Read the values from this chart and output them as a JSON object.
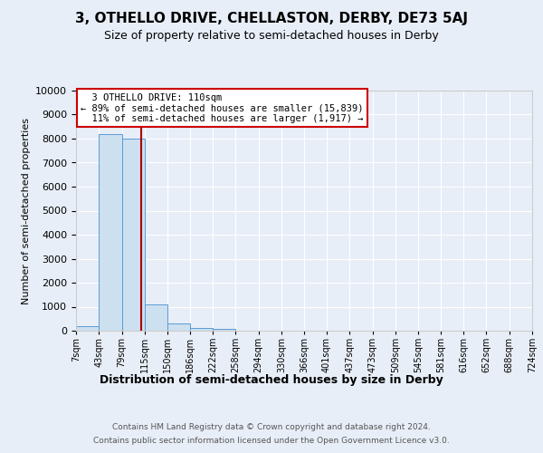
{
  "title": "3, OTHELLO DRIVE, CHELLASTON, DERBY, DE73 5AJ",
  "subtitle": "Size of property relative to semi-detached houses in Derby",
  "xlabel": "Distribution of semi-detached houses by size in Derby",
  "ylabel": "Number of semi-detached properties",
  "property_label": "3 OTHELLO DRIVE: 110sqm",
  "smaller_pct": 89,
  "smaller_count": "15,839",
  "larger_pct": 11,
  "larger_count": "1,917",
  "bin_edges": [
    7,
    43,
    79,
    115,
    150,
    186,
    222,
    258,
    294,
    330,
    366,
    401,
    437,
    473,
    509,
    545,
    581,
    616,
    652,
    688,
    724
  ],
  "bin_counts": [
    170,
    8200,
    8000,
    1100,
    300,
    110,
    70,
    0,
    0,
    0,
    0,
    0,
    0,
    0,
    0,
    0,
    0,
    0,
    0,
    0
  ],
  "bar_color": "#cce0f0",
  "bar_edge_color": "#5b9bd5",
  "vline_color": "#aa0000",
  "vline_x": 110,
  "legend_edge_color": "#cc0000",
  "footer_line1": "Contains HM Land Registry data © Crown copyright and database right 2024.",
  "footer_line2": "Contains public sector information licensed under the Open Government Licence v3.0.",
  "ylim": [
    0,
    10000
  ],
  "yticks": [
    0,
    1000,
    2000,
    3000,
    4000,
    5000,
    6000,
    7000,
    8000,
    9000,
    10000
  ],
  "background_color": "#e8eef8",
  "grid_color": "#ffffff",
  "tick_labels": [
    "7sqm",
    "43sqm",
    "79sqm",
    "115sqm",
    "150sqm",
    "186sqm",
    "222sqm",
    "258sqm",
    "294sqm",
    "330sqm",
    "366sqm",
    "401sqm",
    "437sqm",
    "473sqm",
    "509sqm",
    "545sqm",
    "581sqm",
    "616sqm",
    "652sqm",
    "688sqm",
    "724sqm"
  ]
}
